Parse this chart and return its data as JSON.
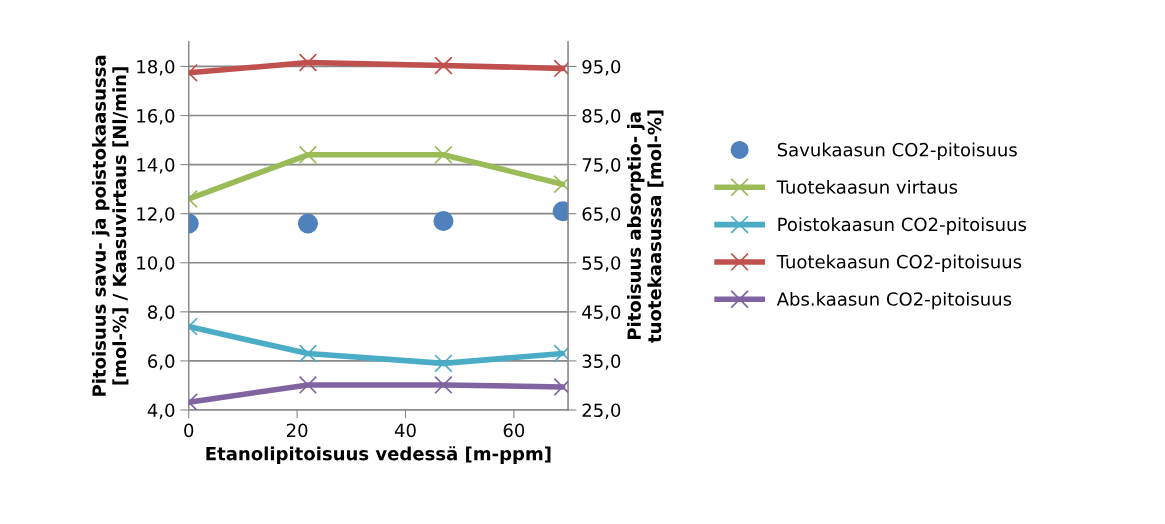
{
  "chart_data": {
    "type": "line",
    "xlabel": "Etanolipitoisuus vedessä [m-ppm]",
    "ylabel": "Pitoisuus savu- ja poistokaasussa [mol-%] / Kaasuvirtaus [Nl/min]",
    "y2label": "Pitoisuus absorptio- ja tuotekaasussa [mol-%]",
    "x": [
      0,
      22,
      47,
      69
    ],
    "xlim": [
      0,
      70
    ],
    "xticks": [
      0,
      20,
      40,
      60
    ],
    "ylim": [
      4,
      19
    ],
    "yticks": [
      {
        "value": 4,
        "label": "4,0"
      },
      {
        "value": 6,
        "label": "6,0"
      },
      {
        "value": 8,
        "label": "8,0"
      },
      {
        "value": 10,
        "label": "10,0"
      },
      {
        "value": 12,
        "label": "12,0"
      },
      {
        "value": 14,
        "label": "14,0"
      },
      {
        "value": 16,
        "label": "16,0"
      },
      {
        "value": 18,
        "label": "18,0"
      }
    ],
    "y2lim": [
      25,
      100
    ],
    "y2ticks": [
      {
        "value": 25,
        "label": "25,0"
      },
      {
        "value": 35,
        "label": "35,0"
      },
      {
        "value": 45,
        "label": "45,0"
      },
      {
        "value": 55,
        "label": "55,0"
      },
      {
        "value": 65,
        "label": "65,0"
      },
      {
        "value": 75,
        "label": "75,0"
      },
      {
        "value": 85,
        "label": "85,0"
      },
      {
        "value": 95,
        "label": "95,0"
      }
    ],
    "grid": "y",
    "legend": "right",
    "series": [
      {
        "name": "Savukaasun CO2-pitoisuus",
        "type": "scatter",
        "marker": "circle",
        "color": "#4f81bd",
        "values": [
          11.6,
          11.6,
          11.7,
          12.1
        ]
      },
      {
        "name": "Tuotekaasun virtaus",
        "marker": "cross",
        "color": "#9bbb59",
        "values": [
          12.6,
          14.4,
          14.4,
          13.2
        ]
      },
      {
        "name": "Poistokaasun CO2-pitoisuus",
        "marker": "cross",
        "color": "#4bacc6",
        "values": [
          7.4,
          6.3,
          5.9,
          6.3
        ]
      },
      {
        "name": "Tuotekaasun CO2-pitoisuus",
        "marker": "cross",
        "color": "#c0504d",
        "axis": "y2",
        "values": [
          93.7,
          95.8,
          95.2,
          94.6
        ]
      },
      {
        "name": "Abs.kaasun CO2-pitoisuus",
        "marker": "cross",
        "color": "#8064a2",
        "axis": "y2",
        "values": [
          26.6,
          30.1,
          30.1,
          29.7
        ]
      }
    ]
  }
}
